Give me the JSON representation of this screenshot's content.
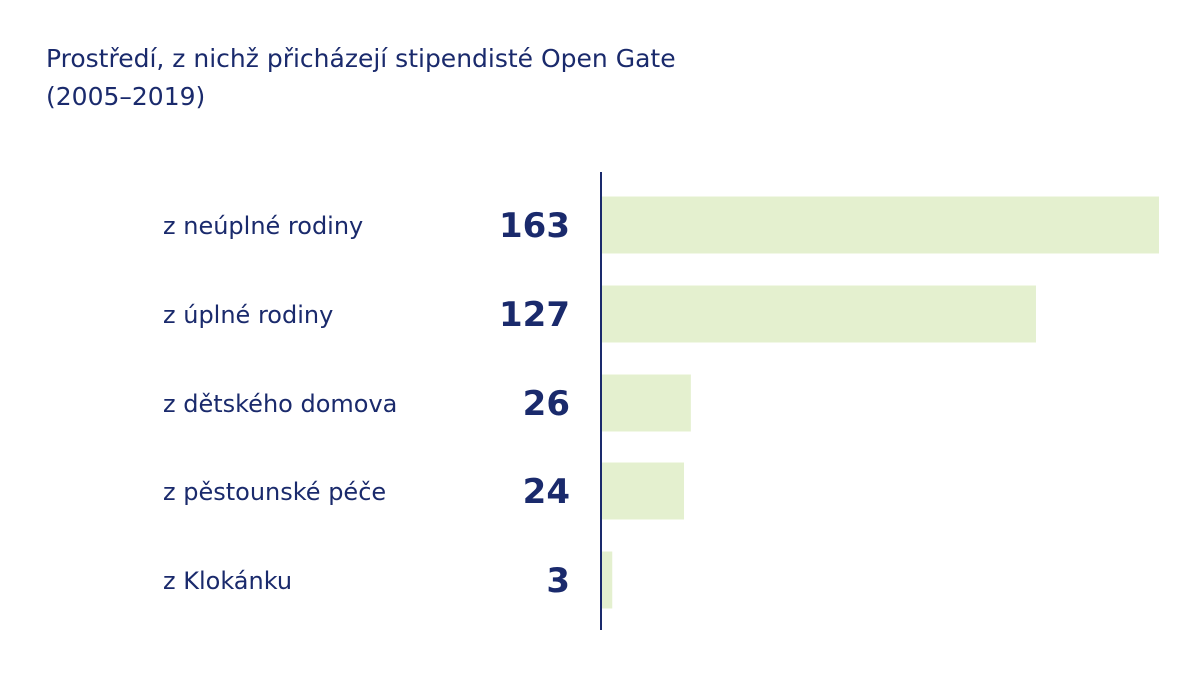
{
  "chart_data": {
    "type": "bar",
    "orientation": "horizontal",
    "title": "Prostředí, z nichž přicházejí stipendisté Open Gate (2005–2019)",
    "categories": [
      "z neúplné rodiny",
      "z úplné rodiny",
      "z dětského domova",
      "z pěstounské péče",
      "z Klokánku"
    ],
    "values": [
      163,
      127,
      26,
      24,
      3
    ],
    "value_labels": [
      "163",
      "127",
      "26",
      "24",
      "3"
    ],
    "xlim": [
      0,
      163
    ],
    "grid": false,
    "legend": "none",
    "colors": {
      "bar": "#e4f0cf",
      "text": "#1a2a6c",
      "axis": "#1a2a6c"
    }
  }
}
